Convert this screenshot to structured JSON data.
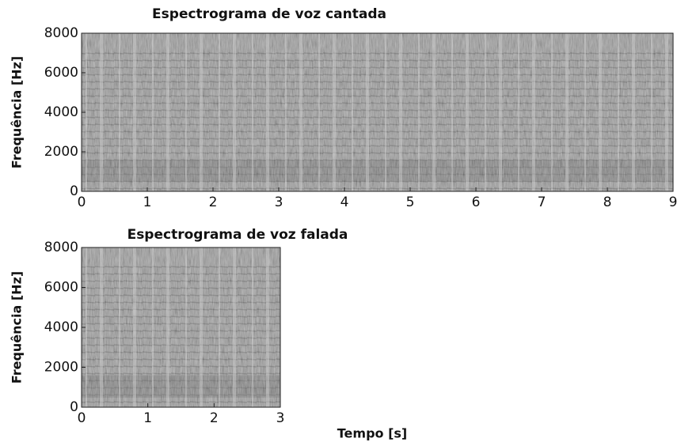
{
  "chart_data": [
    {
      "type": "spectrogram",
      "title": "Espectrograma de voz cantada",
      "ylabel": "Frequência [Hz]",
      "xlim": [
        0,
        9
      ],
      "xticks": [
        0,
        1,
        2,
        3,
        4,
        5,
        6,
        7,
        8,
        9
      ],
      "ylim": [
        0,
        8000
      ],
      "yticks": [
        0,
        2000,
        4000,
        6000,
        8000
      ]
    },
    {
      "type": "spectrogram",
      "title": "Espectrograma de voz falada",
      "ylabel": "Frequência [Hz]",
      "xlabel": "Tempo [s]",
      "xlim": [
        0,
        3
      ],
      "xticks": [
        0,
        1,
        2,
        3
      ],
      "ylim": [
        0,
        8000
      ],
      "yticks": [
        0,
        2000,
        4000,
        6000,
        8000
      ]
    }
  ]
}
